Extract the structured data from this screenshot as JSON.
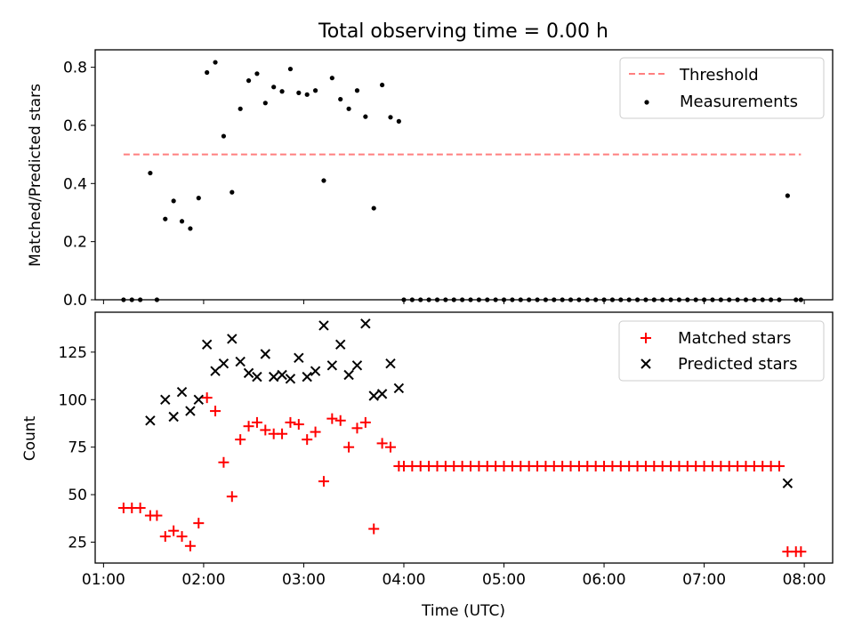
{
  "title": "Total observing time = 0.00 h",
  "colors": {
    "threshold": "#ff7f7f",
    "measurement": "#000000",
    "matched": "#ff0000",
    "predicted": "#000000"
  },
  "chart_data": [
    {
      "type": "scatter",
      "ylabel": "Matched/Predicted stars",
      "xlabel": "",
      "xlim": [
        "00:55",
        "08:17"
      ],
      "ylim": [
        0,
        0.86
      ],
      "yticks": [
        0.0,
        0.2,
        0.4,
        0.6,
        0.8
      ],
      "ytick_labels": [
        "0.0",
        "0.2",
        "0.4",
        "0.6",
        "0.8"
      ],
      "xticks": [
        "01:00",
        "02:00",
        "03:00",
        "04:00",
        "05:00",
        "06:00",
        "07:00",
        "08:00"
      ],
      "legend_placement": "top-right",
      "legend": [
        "Threshold",
        "Measurements"
      ],
      "series": [
        {
          "name": "Threshold",
          "style": "dashed-line",
          "x": [
            "01:12",
            "07:58"
          ],
          "y": [
            0.5,
            0.5
          ]
        },
        {
          "name": "Measurements",
          "style": "dot",
          "points": [
            [
              "01:12",
              0.0
            ],
            [
              "01:17",
              0.0
            ],
            [
              "01:22",
              0.0
            ],
            [
              "01:28",
              0.436
            ],
            [
              "01:32",
              0.0
            ],
            [
              "01:37",
              0.278
            ],
            [
              "01:42",
              0.34
            ],
            [
              "01:47",
              0.27
            ],
            [
              "01:52",
              0.245
            ],
            [
              "01:57",
              0.35
            ],
            [
              "02:02",
              0.782
            ],
            [
              "02:07",
              0.817
            ],
            [
              "02:12",
              0.563
            ],
            [
              "02:17",
              0.37
            ],
            [
              "02:22",
              0.657
            ],
            [
              "02:27",
              0.754
            ],
            [
              "02:32",
              0.778
            ],
            [
              "02:37",
              0.677
            ],
            [
              "02:42",
              0.732
            ],
            [
              "02:47",
              0.717
            ],
            [
              "02:52",
              0.794
            ],
            [
              "02:57",
              0.712
            ],
            [
              "03:02",
              0.706
            ],
            [
              "03:07",
              0.72
            ],
            [
              "03:12",
              0.41
            ],
            [
              "03:17",
              0.763
            ],
            [
              "03:22",
              0.69
            ],
            [
              "03:27",
              0.657
            ],
            [
              "03:32",
              0.72
            ],
            [
              "03:37",
              0.63
            ],
            [
              "03:42",
              0.315
            ],
            [
              "03:47",
              0.739
            ],
            [
              "03:52",
              0.628
            ],
            [
              "03:57",
              0.614
            ],
            [
              "04:00",
              0.0
            ],
            [
              "04:05",
              0.0
            ],
            [
              "04:10",
              0.0
            ],
            [
              "04:15",
              0.0
            ],
            [
              "04:20",
              0.0
            ],
            [
              "04:25",
              0.0
            ],
            [
              "04:30",
              0.0
            ],
            [
              "04:35",
              0.0
            ],
            [
              "04:40",
              0.0
            ],
            [
              "04:45",
              0.0
            ],
            [
              "04:50",
              0.0
            ],
            [
              "04:55",
              0.0
            ],
            [
              "05:00",
              0.0
            ],
            [
              "05:05",
              0.0
            ],
            [
              "05:10",
              0.0
            ],
            [
              "05:15",
              0.0
            ],
            [
              "05:20",
              0.0
            ],
            [
              "05:25",
              0.0
            ],
            [
              "05:30",
              0.0
            ],
            [
              "05:35",
              0.0
            ],
            [
              "05:40",
              0.0
            ],
            [
              "05:45",
              0.0
            ],
            [
              "05:50",
              0.0
            ],
            [
              "05:55",
              0.0
            ],
            [
              "06:00",
              0.0
            ],
            [
              "06:05",
              0.0
            ],
            [
              "06:10",
              0.0
            ],
            [
              "06:15",
              0.0
            ],
            [
              "06:20",
              0.0
            ],
            [
              "06:25",
              0.0
            ],
            [
              "06:30",
              0.0
            ],
            [
              "06:35",
              0.0
            ],
            [
              "06:40",
              0.0
            ],
            [
              "06:45",
              0.0
            ],
            [
              "06:50",
              0.0
            ],
            [
              "06:55",
              0.0
            ],
            [
              "07:00",
              0.0
            ],
            [
              "07:05",
              0.0
            ],
            [
              "07:10",
              0.0
            ],
            [
              "07:15",
              0.0
            ],
            [
              "07:20",
              0.0
            ],
            [
              "07:25",
              0.0
            ],
            [
              "07:30",
              0.0
            ],
            [
              "07:35",
              0.0
            ],
            [
              "07:40",
              0.0
            ],
            [
              "07:45",
              0.0
            ],
            [
              "07:50",
              0.358
            ],
            [
              "07:55",
              0.0
            ],
            [
              "07:58",
              0.0
            ]
          ]
        }
      ]
    },
    {
      "type": "scatter",
      "ylabel": "Count",
      "xlabel": "Time (UTC)",
      "xlim": [
        "00:55",
        "08:17"
      ],
      "ylim": [
        14,
        146
      ],
      "yticks": [
        25,
        50,
        75,
        100,
        125
      ],
      "ytick_labels": [
        "25",
        "50",
        "75",
        "100",
        "125"
      ],
      "xticks": [
        "01:00",
        "02:00",
        "03:00",
        "04:00",
        "05:00",
        "06:00",
        "07:00",
        "08:00"
      ],
      "xtick_labels": [
        "01:00",
        "02:00",
        "03:00",
        "04:00",
        "05:00",
        "06:00",
        "07:00",
        "08:00"
      ],
      "legend_placement": "top-right",
      "legend": [
        "Matched stars",
        "Predicted stars"
      ],
      "series": [
        {
          "name": "Matched stars",
          "marker": "+",
          "points": [
            [
              "01:12",
              43
            ],
            [
              "01:17",
              43
            ],
            [
              "01:22",
              43
            ],
            [
              "01:28",
              39
            ],
            [
              "01:32",
              39
            ],
            [
              "01:37",
              28
            ],
            [
              "01:42",
              31
            ],
            [
              "01:47",
              28
            ],
            [
              "01:52",
              23
            ],
            [
              "01:57",
              35
            ],
            [
              "02:02",
              101
            ],
            [
              "02:07",
              94
            ],
            [
              "02:12",
              67
            ],
            [
              "02:17",
              49
            ],
            [
              "02:22",
              79
            ],
            [
              "02:27",
              86
            ],
            [
              "02:32",
              88
            ],
            [
              "02:37",
              84
            ],
            [
              "02:42",
              82
            ],
            [
              "02:47",
              82
            ],
            [
              "02:52",
              88
            ],
            [
              "02:57",
              87
            ],
            [
              "03:02",
              79
            ],
            [
              "03:07",
              83
            ],
            [
              "03:12",
              57
            ],
            [
              "03:17",
              90
            ],
            [
              "03:22",
              89
            ],
            [
              "03:27",
              75
            ],
            [
              "03:32",
              85
            ],
            [
              "03:37",
              88
            ],
            [
              "03:42",
              32
            ],
            [
              "03:47",
              77
            ],
            [
              "03:52",
              75
            ],
            [
              "03:57",
              65
            ],
            [
              "04:00",
              65
            ],
            [
              "04:05",
              65
            ],
            [
              "04:10",
              65
            ],
            [
              "04:15",
              65
            ],
            [
              "04:20",
              65
            ],
            [
              "04:25",
              65
            ],
            [
              "04:30",
              65
            ],
            [
              "04:35",
              65
            ],
            [
              "04:40",
              65
            ],
            [
              "04:45",
              65
            ],
            [
              "04:50",
              65
            ],
            [
              "04:55",
              65
            ],
            [
              "05:00",
              65
            ],
            [
              "05:05",
              65
            ],
            [
              "05:10",
              65
            ],
            [
              "05:15",
              65
            ],
            [
              "05:20",
              65
            ],
            [
              "05:25",
              65
            ],
            [
              "05:30",
              65
            ],
            [
              "05:35",
              65
            ],
            [
              "05:40",
              65
            ],
            [
              "05:45",
              65
            ],
            [
              "05:50",
              65
            ],
            [
              "05:55",
              65
            ],
            [
              "06:00",
              65
            ],
            [
              "06:05",
              65
            ],
            [
              "06:10",
              65
            ],
            [
              "06:15",
              65
            ],
            [
              "06:20",
              65
            ],
            [
              "06:25",
              65
            ],
            [
              "06:30",
              65
            ],
            [
              "06:35",
              65
            ],
            [
              "06:40",
              65
            ],
            [
              "06:45",
              65
            ],
            [
              "06:50",
              65
            ],
            [
              "06:55",
              65
            ],
            [
              "07:00",
              65
            ],
            [
              "07:05",
              65
            ],
            [
              "07:10",
              65
            ],
            [
              "07:15",
              65
            ],
            [
              "07:20",
              65
            ],
            [
              "07:25",
              65
            ],
            [
              "07:30",
              65
            ],
            [
              "07:35",
              65
            ],
            [
              "07:40",
              65
            ],
            [
              "07:45",
              65
            ],
            [
              "07:50",
              20
            ],
            [
              "07:55",
              20
            ],
            [
              "07:58",
              20
            ]
          ]
        },
        {
          "name": "Predicted stars",
          "marker": "x",
          "points": [
            [
              "01:28",
              89
            ],
            [
              "01:37",
              100
            ],
            [
              "01:42",
              91
            ],
            [
              "01:47",
              104
            ],
            [
              "01:52",
              94
            ],
            [
              "01:57",
              100
            ],
            [
              "02:02",
              129
            ],
            [
              "02:07",
              115
            ],
            [
              "02:12",
              119
            ],
            [
              "02:17",
              132
            ],
            [
              "02:22",
              120
            ],
            [
              "02:27",
              114
            ],
            [
              "02:32",
              112
            ],
            [
              "02:37",
              124
            ],
            [
              "02:42",
              112
            ],
            [
              "02:47",
              113
            ],
            [
              "02:52",
              111
            ],
            [
              "02:57",
              122
            ],
            [
              "03:02",
              112
            ],
            [
              "03:07",
              115
            ],
            [
              "03:12",
              139
            ],
            [
              "03:17",
              118
            ],
            [
              "03:22",
              129
            ],
            [
              "03:27",
              113
            ],
            [
              "03:32",
              118
            ],
            [
              "03:37",
              140
            ],
            [
              "03:42",
              102
            ],
            [
              "03:47",
              103
            ],
            [
              "03:52",
              119
            ],
            [
              "03:57",
              106
            ],
            [
              "07:50",
              56
            ]
          ]
        }
      ]
    }
  ]
}
